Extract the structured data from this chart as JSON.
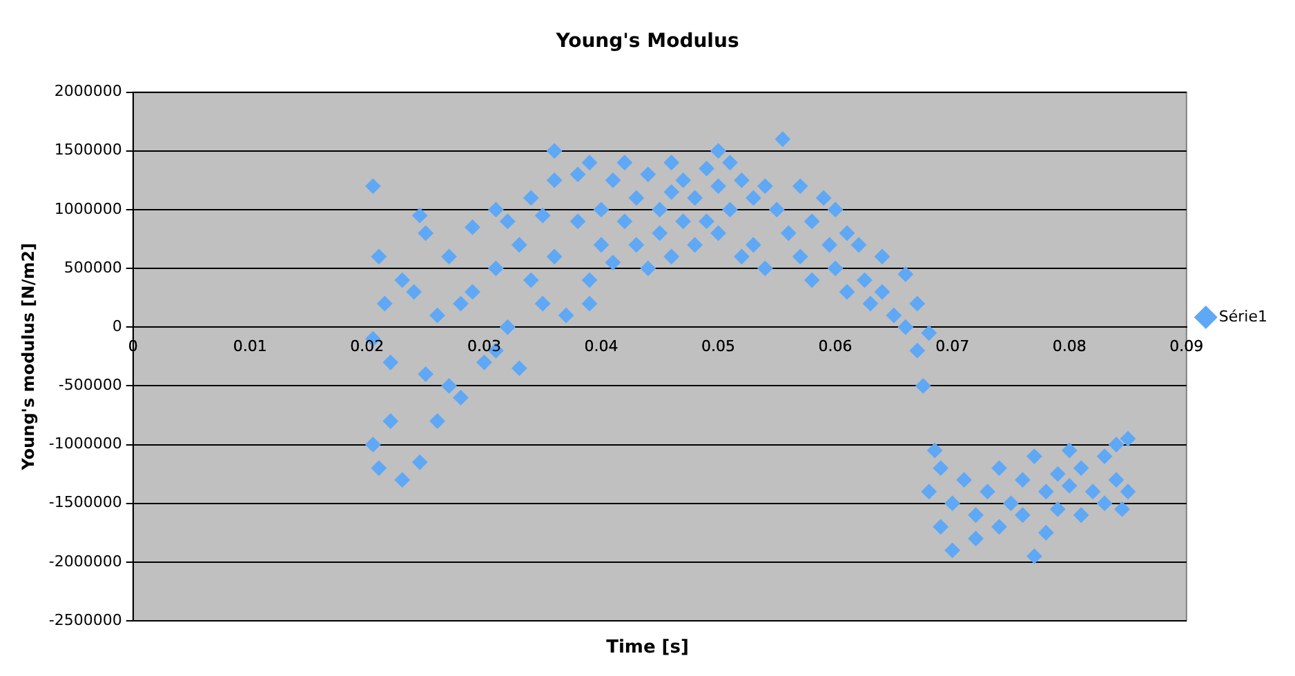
{
  "chart_data": {
    "type": "scatter",
    "title": "Young's Modulus",
    "xlabel": "Time [s]",
    "ylabel": "Young's modulus [N/m2]",
    "xlim": [
      0,
      0.09
    ],
    "xticks": [
      0,
      0.01,
      0.02,
      0.03,
      0.04,
      0.05,
      0.06,
      0.07,
      0.08,
      0.09
    ],
    "ylim": [
      -2500000,
      2000000
    ],
    "yticks": [
      -2500000,
      -2000000,
      -1500000,
      -1000000,
      -500000,
      0,
      500000,
      1000000,
      1500000,
      2000000
    ],
    "grid": "y",
    "legend": "right",
    "marker": "diamond",
    "series": [
      {
        "name": "Série1",
        "color": "#5fa8f5",
        "x": [
          0.0205,
          0.0205,
          0.0205,
          0.021,
          0.021,
          0.0215,
          0.022,
          0.022,
          0.023,
          0.023,
          0.024,
          0.0245,
          0.0245,
          0.025,
          0.025,
          0.026,
          0.026,
          0.027,
          0.027,
          0.028,
          0.028,
          0.029,
          0.029,
          0.03,
          0.031,
          0.031,
          0.031,
          0.032,
          0.032,
          0.033,
          0.033,
          0.034,
          0.034,
          0.035,
          0.035,
          0.036,
          0.036,
          0.036,
          0.037,
          0.038,
          0.038,
          0.039,
          0.039,
          0.04,
          0.04,
          0.039,
          0.041,
          0.041,
          0.042,
          0.042,
          0.043,
          0.043,
          0.044,
          0.044,
          0.045,
          0.045,
          0.046,
          0.046,
          0.046,
          0.047,
          0.047,
          0.048,
          0.048,
          0.049,
          0.049,
          0.05,
          0.05,
          0.05,
          0.051,
          0.051,
          0.052,
          0.052,
          0.053,
          0.053,
          0.054,
          0.054,
          0.0555,
          0.055,
          0.056,
          0.057,
          0.057,
          0.058,
          0.058,
          0.059,
          0.0595,
          0.06,
          0.06,
          0.061,
          0.061,
          0.062,
          0.0625,
          0.063,
          0.064,
          0.064,
          0.065,
          0.066,
          0.066,
          0.067,
          0.067,
          0.0675,
          0.068,
          0.0685,
          0.068,
          0.069,
          0.069,
          0.07,
          0.07,
          0.071,
          0.072,
          0.072,
          0.073,
          0.074,
          0.074,
          0.075,
          0.076,
          0.076,
          0.077,
          0.077,
          0.078,
          0.078,
          0.079,
          0.079,
          0.08,
          0.08,
          0.081,
          0.081,
          0.082,
          0.083,
          0.083,
          0.084,
          0.084,
          0.0845,
          0.085,
          0.085
        ],
        "values": [
          1200000,
          -100000,
          -1000000,
          -1200000,
          600000,
          200000,
          -300000,
          -800000,
          -1300000,
          400000,
          300000,
          -1150000,
          950000,
          800000,
          -400000,
          -800000,
          100000,
          600000,
          -500000,
          200000,
          -600000,
          850000,
          300000,
          -300000,
          1000000,
          500000,
          -200000,
          0,
          900000,
          700000,
          -350000,
          1100000,
          400000,
          200000,
          950000,
          1500000,
          1250000,
          600000,
          100000,
          1300000,
          900000,
          400000,
          1400000,
          1000000,
          700000,
          200000,
          1250000,
          550000,
          1400000,
          900000,
          1100000,
          700000,
          1300000,
          500000,
          1000000,
          800000,
          1400000,
          1150000,
          600000,
          1250000,
          900000,
          1100000,
          700000,
          1350000,
          900000,
          1500000,
          1200000,
          800000,
          1400000,
          1000000,
          600000,
          1250000,
          1100000,
          700000,
          1200000,
          500000,
          1600000,
          1000000,
          800000,
          1200000,
          600000,
          900000,
          400000,
          1100000,
          700000,
          500000,
          1000000,
          300000,
          800000,
          700000,
          400000,
          200000,
          600000,
          300000,
          100000,
          450000,
          0,
          200000,
          -200000,
          -500000,
          -50000,
          -1050000,
          -1400000,
          -1700000,
          -1200000,
          -1900000,
          -1500000,
          -1300000,
          -1800000,
          -1600000,
          -1400000,
          -1200000,
          -1700000,
          -1500000,
          -1300000,
          -1600000,
          -1100000,
          -1950000,
          -1400000,
          -1750000,
          -1250000,
          -1550000,
          -1050000,
          -1350000,
          -1600000,
          -1200000,
          -1400000,
          -1100000,
          -1500000,
          -1000000,
          -1300000,
          -1550000,
          -950000,
          -1400000
        ]
      }
    ]
  }
}
